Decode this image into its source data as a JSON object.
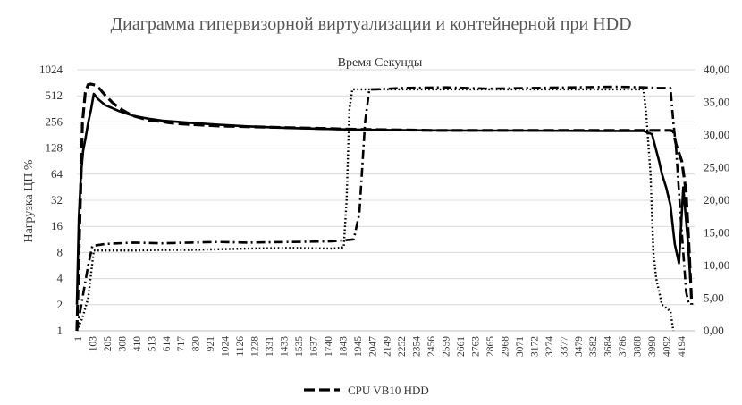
{
  "chart_data": {
    "type": "line",
    "title": "Диаграмма гипервизорной виртуализации и контейнерной при HDD",
    "subtitle": "Время Секунды",
    "ylabel": "Нагрузка ЦП %",
    "y_left_ticks": [
      "1",
      "2",
      "4",
      "8",
      "16",
      "32",
      "64",
      "128",
      "256",
      "512",
      "1024"
    ],
    "y_left_scale": "log2",
    "ylim_left": [
      1,
      1024
    ],
    "y_right_ticks": [
      "0,00",
      "5,00",
      "10,00",
      "15,00",
      "20,00",
      "25,00",
      "30,00",
      "35,00",
      "40,00"
    ],
    "ylim_right": [
      0,
      40
    ],
    "x_ticks": [
      "1",
      "103",
      "205",
      "308",
      "410",
      "513",
      "614",
      "717",
      "820",
      "921",
      "1024",
      "1126",
      "1228",
      "1331",
      "1433",
      "1535",
      "1637",
      "1740",
      "1843",
      "1945",
      "2047",
      "2149",
      "2252",
      "2354",
      "2456",
      "2559",
      "2661",
      "2763",
      "2865",
      "2968",
      "3071",
      "3172",
      "3274",
      "3377",
      "3479",
      "3582",
      "3684",
      "3786",
      "3888",
      "3990",
      "4092",
      "4194"
    ],
    "xlim": [
      1,
      4350
    ],
    "grid": "horizontal",
    "legend_position": "bottom",
    "legend_visible": [
      "CPU VB10 HDD"
    ],
    "series": [
      {
        "name": "CPU VB10 HDD",
        "axis": "left",
        "style": "dashed",
        "x": [
          1,
          20,
          40,
          60,
          80,
          100,
          130,
          160,
          200,
          250,
          300,
          350,
          400,
          500,
          700,
          1000,
          1500,
          2000,
          2500,
          3000,
          3500,
          3990,
          4100,
          4150,
          4180,
          4200,
          4220,
          4260,
          4290,
          4310,
          4330
        ],
        "y": [
          1,
          14,
          250,
          560,
          690,
          700,
          680,
          620,
          520,
          430,
          370,
          330,
          300,
          270,
          245,
          230,
          220,
          210,
          205,
          205,
          205,
          205,
          205,
          205,
          205,
          200,
          140,
          90,
          40,
          10,
          2
        ]
      },
      {
        "axis": "left",
        "style": "solid",
        "x": [
          1,
          15,
          30,
          45,
          60,
          80,
          100,
          120,
          150,
          200,
          250,
          300,
          400,
          500,
          600,
          800,
          1000,
          1200,
          1500,
          1800,
          2000,
          2200,
          2500,
          2800,
          3100,
          3400,
          3700,
          3990,
          4050,
          4080,
          4100,
          4120,
          4150,
          4180,
          4210,
          4240,
          4270,
          4300,
          4320
        ],
        "y": [
          2,
          20,
          64,
          120,
          160,
          250,
          350,
          540,
          470,
          400,
          370,
          340,
          300,
          280,
          265,
          250,
          238,
          228,
          218,
          212,
          208,
          207,
          205,
          204,
          204,
          203,
          202,
          202,
          185,
          120,
          90,
          64,
          45,
          28,
          10,
          6,
          45,
          12,
          4
        ]
      },
      {
        "axis": "right",
        "style": "dotted",
        "x": [
          1,
          40,
          80,
          120,
          200,
          400,
          600,
          800,
          1000,
          1200,
          1500,
          1800,
          1880,
          1900,
          1920,
          1940,
          2000,
          2200,
          2500,
          2800,
          3100,
          3400,
          3700,
          3950,
          3990,
          4010,
          4040,
          4060,
          4080,
          4120,
          4180,
          4200
        ],
        "y": [
          0,
          2,
          5,
          12.3,
          12.3,
          12.3,
          12.4,
          12.4,
          12.5,
          12.6,
          12.7,
          12.6,
          12.8,
          20,
          34,
          37,
          37,
          37,
          37,
          37,
          37,
          37,
          37,
          37,
          37,
          33,
          24,
          12,
          8,
          4,
          3,
          0
        ]
      },
      {
        "axis": "right",
        "style": "dash-dot",
        "x": [
          1,
          40,
          80,
          110,
          200,
          400,
          600,
          800,
          1000,
          1200,
          1500,
          1800,
          1950,
          1990,
          2010,
          2030,
          2060,
          2100,
          2300,
          2600,
          2900,
          3200,
          3500,
          3800,
          3990,
          4100,
          4180,
          4200,
          4220,
          4250,
          4290,
          4310
        ],
        "y": [
          0,
          5,
          10,
          13,
          13.3,
          13.5,
          13.4,
          13.5,
          13.6,
          13.5,
          13.6,
          13.7,
          14,
          18,
          25,
          32,
          37,
          37,
          37.2,
          37.3,
          37.1,
          37.2,
          37.3,
          37.4,
          37.3,
          37.2,
          37.2,
          32,
          28,
          18,
          6,
          4
        ]
      }
    ]
  }
}
